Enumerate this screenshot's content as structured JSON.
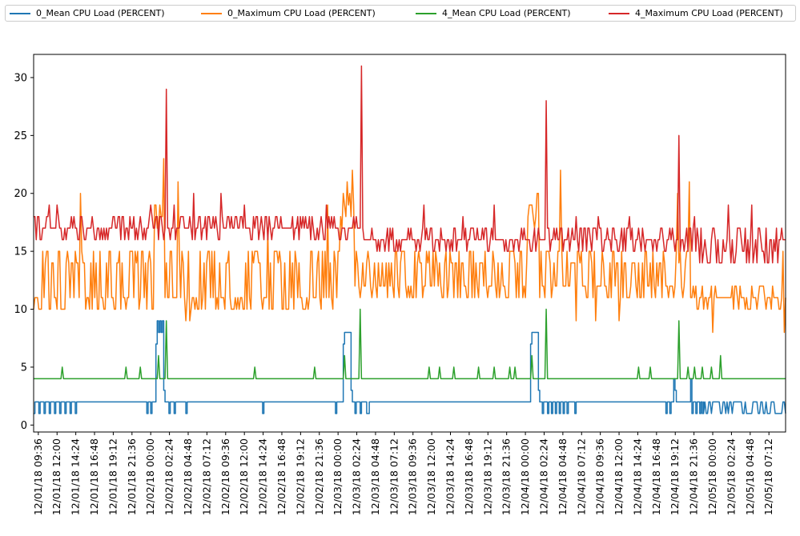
{
  "chart_data": {
    "type": "line",
    "title": "",
    "xlabel": "",
    "ylabel": "",
    "ylim": [
      0,
      32
    ],
    "yticks": [
      0,
      5,
      10,
      15,
      20,
      25,
      30
    ],
    "legend_position": "top, across full width",
    "grid": false,
    "x_tick_labels": [
      "12/01/18 09:36",
      "12/01/18 12:00",
      "12/01/18 14:24",
      "12/01/18 16:48",
      "12/01/18 19:12",
      "12/01/18 21:36",
      "12/02/18 00:00",
      "12/02/18 02:24",
      "12/02/18 04:48",
      "12/02/18 07:12",
      "12/02/18 09:36",
      "12/02/18 12:00",
      "12/02/18 14:24",
      "12/02/18 16:48",
      "12/02/18 19:12",
      "12/02/18 21:36",
      "12/03/18 00:00",
      "12/03/18 02:24",
      "12/03/18 04:48",
      "12/03/18 07:12",
      "12/03/18 09:36",
      "12/03/18 12:00",
      "12/03/18 14:24",
      "12/03/18 16:48",
      "12/03/18 19:12",
      "12/03/18 21:36",
      "12/04/18 00:00",
      "12/04/18 02:24",
      "12/04/18 04:48",
      "12/04/18 07:12",
      "12/04/18 09:36",
      "12/04/18 12:00",
      "12/04/18 14:24",
      "12/04/18 16:48",
      "12/04/18 19:12",
      "12/04/18 21:36",
      "12/05/18 00:00",
      "12/05/18 02:24",
      "12/05/18 04:48",
      "12/05/18 07:12"
    ],
    "x_range": [
      "12/01/18 09:00",
      "12/05/18 09:20"
    ],
    "series": [
      {
        "name": "0_Mean CPU Load (PERCENT)",
        "color": "#1f77b4",
        "baseline": 2,
        "points": [
          [
            "12/01/18 09:00",
            1
          ],
          [
            "12/01/18 09:10",
            2
          ],
          [
            "12/01/18 09:40",
            1
          ],
          [
            "12/01/18 09:50",
            2
          ],
          [
            "12/01/18 10:20",
            1
          ],
          [
            "12/01/18 10:30",
            2
          ],
          [
            "12/01/18 11:00",
            1
          ],
          [
            "12/01/18 11:10",
            2
          ],
          [
            "12/01/18 11:40",
            1
          ],
          [
            "12/01/18 11:50",
            2
          ],
          [
            "12/01/18 12:20",
            1
          ],
          [
            "12/01/18 12:30",
            2
          ],
          [
            "12/01/18 13:00",
            1
          ],
          [
            "12/01/18 13:10",
            2
          ],
          [
            "12/01/18 13:40",
            1
          ],
          [
            "12/01/18 13:50",
            2
          ],
          [
            "12/01/18 14:20",
            1
          ],
          [
            "12/01/18 14:30",
            2
          ],
          [
            "12/01/18 23:20",
            2
          ],
          [
            "12/01/18 23:30",
            1
          ],
          [
            "12/01/18 23:40",
            2
          ],
          [
            "12/02/18 00:00",
            1
          ],
          [
            "12/02/18 00:10",
            2
          ],
          [
            "12/02/18 00:30",
            2
          ],
          [
            "12/02/18 00:40",
            7
          ],
          [
            "12/02/18 00:50",
            9
          ],
          [
            "12/02/18 01:00",
            8
          ],
          [
            "12/02/18 01:10",
            9
          ],
          [
            "12/02/18 01:20",
            8
          ],
          [
            "12/02/18 01:30",
            9
          ],
          [
            "12/02/18 01:40",
            3
          ],
          [
            "12/02/18 01:50",
            2
          ],
          [
            "12/02/18 02:20",
            1
          ],
          [
            "12/02/18 02:30",
            2
          ],
          [
            "12/02/18 03:00",
            1
          ],
          [
            "12/02/18 03:10",
            2
          ],
          [
            "12/02/18 04:30",
            1
          ],
          [
            "12/02/18 04:40",
            2
          ],
          [
            "12/02/18 14:20",
            1
          ],
          [
            "12/02/18 14:30",
            2
          ],
          [
            "12/02/18 23:40",
            1
          ],
          [
            "12/02/18 23:50",
            2
          ],
          [
            "12/03/18 00:30",
            2
          ],
          [
            "12/03/18 00:40",
            7
          ],
          [
            "12/03/18 00:50",
            8
          ],
          [
            "12/03/18 01:30",
            8
          ],
          [
            "12/03/18 01:40",
            3
          ],
          [
            "12/03/18 01:50",
            2
          ],
          [
            "12/03/18 02:10",
            1
          ],
          [
            "12/03/18 02:20",
            2
          ],
          [
            "12/03/18 02:50",
            1
          ],
          [
            "12/03/18 03:00",
            2
          ],
          [
            "12/03/18 03:40",
            1
          ],
          [
            "12/03/18 03:50",
            1
          ],
          [
            "12/03/18 04:00",
            2
          ],
          [
            "12/04/18 00:30",
            2
          ],
          [
            "12/04/18 00:40",
            7
          ],
          [
            "12/04/18 00:50",
            8
          ],
          [
            "12/04/18 01:30",
            8
          ],
          [
            "12/04/18 01:40",
            3
          ],
          [
            "12/04/18 01:50",
            2
          ],
          [
            "12/04/18 02:10",
            1
          ],
          [
            "12/04/18 02:20",
            2
          ],
          [
            "12/04/18 02:50",
            1
          ],
          [
            "12/04/18 03:00",
            2
          ],
          [
            "12/04/18 03:20",
            1
          ],
          [
            "12/04/18 03:30",
            2
          ],
          [
            "12/04/18 03:50",
            1
          ],
          [
            "12/04/18 04:00",
            2
          ],
          [
            "12/04/18 04:20",
            1
          ],
          [
            "12/04/18 04:30",
            2
          ],
          [
            "12/04/18 04:50",
            1
          ],
          [
            "12/04/18 05:00",
            2
          ],
          [
            "12/04/18 05:20",
            1
          ],
          [
            "12/04/18 05:30",
            2
          ],
          [
            "12/04/18 06:20",
            1
          ],
          [
            "12/04/18 06:30",
            2
          ],
          [
            "12/04/18 18:00",
            1
          ],
          [
            "12/04/18 18:10",
            2
          ],
          [
            "12/04/18 18:30",
            1
          ],
          [
            "12/04/18 18:40",
            2
          ],
          [
            "12/04/18 18:50",
            2
          ],
          [
            "12/04/18 19:00",
            4
          ],
          [
            "12/04/18 19:10",
            3
          ],
          [
            "12/04/18 19:20",
            2
          ],
          [
            "12/04/18 21:00",
            2
          ],
          [
            "12/04/18 21:10",
            4
          ],
          [
            "12/04/18 21:20",
            1
          ],
          [
            "12/04/18 21:30",
            2
          ],
          [
            "12/04/18 21:50",
            1
          ],
          [
            "12/04/18 22:00",
            2
          ],
          [
            "12/04/18 22:20",
            1
          ],
          [
            "12/04/18 22:30",
            2
          ],
          [
            "12/04/18 22:40",
            1
          ],
          [
            "12/04/18 22:50",
            2
          ],
          [
            "12/05/18 00:30",
            3
          ],
          [
            "12/05/18 00:40",
            1
          ],
          [
            "12/05/18 07:50",
            3
          ],
          [
            "12/05/18 08:00",
            1
          ],
          [
            "12/05/18 09:20",
            2
          ]
        ],
        "dense_from": "12/04/18 22:50",
        "dense_to": "12/05/18 09:20",
        "dense_values": [
          1,
          2
        ]
      },
      {
        "name": "0_Maximum CPU Load (PERCENT)",
        "color": "#ff7f0e",
        "band_default": [
          10,
          15
        ],
        "band_segments": [
          {
            "from": "12/01/18 09:00",
            "to": "12/02/18 00:30",
            "low": 10,
            "high": 15
          },
          {
            "from": "12/02/18 02:00",
            "to": "12/03/18 00:20",
            "low": 10,
            "high": 15
          },
          {
            "from": "12/03/18 02:20",
            "to": "12/04/18 00:20",
            "low": 11,
            "high": 15
          },
          {
            "from": "12/04/18 02:00",
            "to": "12/04/18 21:00",
            "low": 11,
            "high": 15
          },
          {
            "from": "12/04/18 21:00",
            "to": "12/05/18 09:20",
            "low": 10,
            "high": 12
          }
        ],
        "bursts": [
          {
            "from": "12/02/18 00:30",
            "to": "12/02/18 01:50",
            "low": 17,
            "high": 23
          },
          {
            "from": "12/03/18 00:20",
            "to": "12/03/18 02:10",
            "low": 17,
            "high": 23
          },
          {
            "from": "12/04/18 00:20",
            "to": "12/04/18 01:50",
            "low": 17,
            "high": 22
          }
        ],
        "spikes": [
          [
            "12/01/18 15:00",
            20
          ],
          [
            "12/02/18 03:30",
            21
          ],
          [
            "12/02/18 04:30",
            9
          ],
          [
            "12/02/18 05:00",
            9
          ],
          [
            "12/02/18 15:00",
            17
          ],
          [
            "12/02/18 22:40",
            19
          ],
          [
            "12/04/18 04:30",
            22
          ],
          [
            "12/04/18 06:30",
            9
          ],
          [
            "12/04/18 09:00",
            9
          ],
          [
            "12/04/18 12:00",
            9
          ],
          [
            "12/04/18 19:30",
            20
          ],
          [
            "12/04/18 21:00",
            21
          ],
          [
            "12/05/18 00:00",
            8
          ],
          [
            "12/05/18 09:00",
            15
          ],
          [
            "12/05/18 09:10",
            8
          ]
        ]
      },
      {
        "name": "4_Mean CPU Load (PERCENT)",
        "color": "#2ca02c",
        "baseline": 4,
        "spikes": [
          [
            "12/01/18 12:40",
            5
          ],
          [
            "12/01/18 20:50",
            5
          ],
          [
            "12/01/18 22:40",
            5
          ],
          [
            "12/02/18 01:00",
            6
          ],
          [
            "12/02/18 02:00",
            9
          ],
          [
            "12/02/18 13:20",
            5
          ],
          [
            "12/02/18 21:00",
            5
          ],
          [
            "12/03/18 00:50",
            6
          ],
          [
            "12/03/18 02:50",
            10
          ],
          [
            "12/03/18 11:40",
            5
          ],
          [
            "12/03/18 13:00",
            5
          ],
          [
            "12/03/18 14:50",
            5
          ],
          [
            "12/03/18 18:00",
            5
          ],
          [
            "12/03/18 20:00",
            5
          ],
          [
            "12/03/18 22:00",
            5
          ],
          [
            "12/03/18 22:40",
            5
          ],
          [
            "12/04/18 00:50",
            6
          ],
          [
            "12/04/18 02:40",
            10
          ],
          [
            "12/04/18 14:30",
            5
          ],
          [
            "12/04/18 16:00",
            5
          ],
          [
            "12/04/18 19:40",
            9
          ],
          [
            "12/04/18 20:50",
            5
          ],
          [
            "12/04/18 21:40",
            5
          ],
          [
            "12/04/18 22:40",
            5
          ],
          [
            "12/04/18 23:50",
            5
          ],
          [
            "12/05/18 01:00",
            6
          ]
        ]
      },
      {
        "name": "4_Maximum CPU Load (PERCENT)",
        "color": "#d62728",
        "band_segments": [
          {
            "from": "12/01/18 09:00",
            "to": "12/03/18 03:00",
            "low": 16,
            "high": 18
          },
          {
            "from": "12/03/18 03:00",
            "to": "12/04/18 21:00",
            "low": 15,
            "high": 17
          },
          {
            "from": "12/04/18 21:00",
            "to": "12/05/18 09:20",
            "low": 14,
            "high": 17
          }
        ],
        "spikes": [
          [
            "12/01/18 11:00",
            19
          ],
          [
            "12/01/18 12:00",
            19
          ],
          [
            "12/01/18 15:00",
            18
          ],
          [
            "12/02/18 00:00",
            19
          ],
          [
            "12/02/18 02:00",
            29
          ],
          [
            "12/02/18 03:00",
            19
          ],
          [
            "12/02/18 05:30",
            20
          ],
          [
            "12/02/18 09:00",
            20
          ],
          [
            "12/02/18 12:00",
            19
          ],
          [
            "12/02/18 16:00",
            18
          ],
          [
            "12/02/18 22:30",
            19
          ],
          [
            "12/03/18 03:00",
            31
          ],
          [
            "12/03/18 11:00",
            19
          ],
          [
            "12/03/18 16:00",
            18
          ],
          [
            "12/03/18 20:00",
            19
          ],
          [
            "12/04/18 02:40",
            28
          ],
          [
            "12/04/18 06:30",
            18
          ],
          [
            "12/04/18 09:20",
            18
          ],
          [
            "12/04/18 13:20",
            18
          ],
          [
            "12/04/18 19:40",
            25
          ],
          [
            "12/04/18 21:40",
            18
          ],
          [
            "12/05/18 02:00",
            19
          ],
          [
            "12/05/18 05:00",
            19
          ]
        ]
      }
    ]
  }
}
